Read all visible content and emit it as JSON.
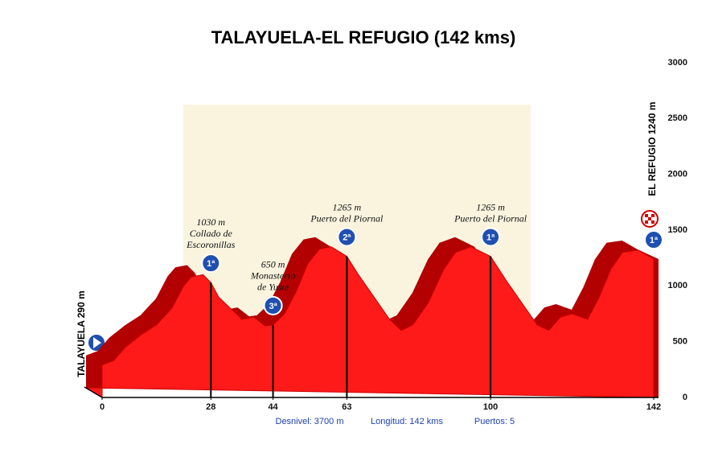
{
  "chart_data": {
    "type": "area",
    "title": "TALAYUELA-EL REFUGIO (142 kms)",
    "start_label": "TALAYUELA 290 m",
    "end_label": "EL REFUGIO 1240 m",
    "color": "#ff1a1a",
    "x": [
      0,
      3,
      6,
      10,
      14,
      18,
      21,
      23,
      26,
      28,
      30,
      33,
      36,
      39,
      42,
      44,
      47,
      50,
      53,
      56,
      59,
      63,
      66,
      70,
      74,
      77,
      80,
      84,
      88,
      91,
      95,
      100,
      104,
      108,
      112,
      115,
      118,
      121,
      125,
      128,
      131,
      134,
      138,
      142
    ],
    "values": [
      290,
      330,
      450,
      560,
      650,
      800,
      1000,
      1080,
      1100,
      1030,
      900,
      800,
      700,
      720,
      640,
      650,
      750,
      950,
      1200,
      1330,
      1350,
      1265,
      1100,
      900,
      700,
      600,
      650,
      850,
      1150,
      1300,
      1350,
      1265,
      1050,
      850,
      650,
      600,
      720,
      750,
      700,
      900,
      1150,
      1300,
      1320,
      1240
    ],
    "xlim": [
      0,
      142
    ],
    "ylim": [
      0,
      3000
    ],
    "xticks": [
      0,
      28,
      44,
      63,
      100,
      142
    ],
    "yticks": [
      0,
      500,
      1000,
      1500,
      2000,
      2500,
      3000
    ],
    "climbs": [
      {
        "x": 28,
        "elevation": 1030,
        "label": "1030 m",
        "name": [
          "Collado de",
          "Escoronillas"
        ],
        "badge": "1ª"
      },
      {
        "x": 44,
        "elevation": 650,
        "label": "650 m",
        "name": [
          "Monasterio",
          "de Yuste"
        ],
        "badge": "3ª"
      },
      {
        "x": 63,
        "elevation": 1265,
        "label": "1265 m",
        "name": [
          "Puerto del Piornal"
        ],
        "badge": "2ª"
      },
      {
        "x": 100,
        "elevation": 1265,
        "label": "1265 m",
        "name": [
          "Puerto del Piornal"
        ],
        "badge": "1ª"
      },
      {
        "x": 142,
        "elevation": 1240,
        "badge": "1ª"
      }
    ],
    "footer": [
      "Desnivel: 3700 m",
      "Longitud: 142 kms",
      "Puertos: 5"
    ]
  }
}
